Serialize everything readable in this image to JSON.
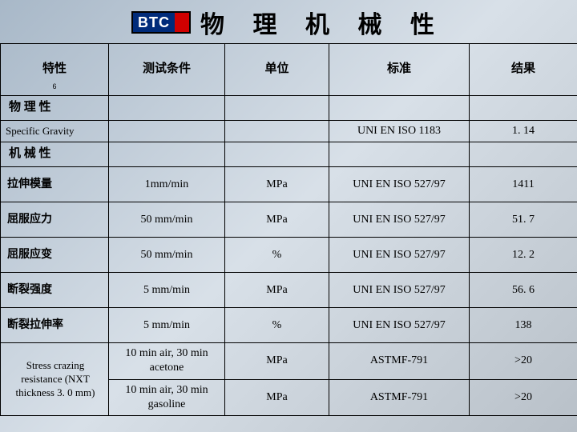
{
  "logo_text": "BTC",
  "title": "物 理 机 械 性",
  "headers": {
    "c1": "特性",
    "c1_sub": "6",
    "c2": "测试条件",
    "c3": "单位",
    "c4": "标准",
    "c5": "结果"
  },
  "section1": "物 理 性",
  "specific_gravity": {
    "name": "Specific Gravity",
    "std": "UNI  EN ISO 1183",
    "val": "1. 14"
  },
  "section2": "机 械 性",
  "rows": [
    {
      "name": "拉伸模量",
      "cond": "1mm/min",
      "unit": "MPa",
      "std": "UNI EN ISO 527/97",
      "val": "1411"
    },
    {
      "name": "屈服应力",
      "cond": "50 mm/min",
      "unit": "MPa",
      "std": "UNI EN ISO 527/97",
      "val": "51. 7"
    },
    {
      "name": "屈服应变",
      "cond": "50 mm/min",
      "unit": "%",
      "std": "UNI EN ISO 527/97",
      "val": "12. 2"
    },
    {
      "name": "断裂强度",
      "cond": "5 mm/min",
      "unit": "MPa",
      "std": "UNI EN ISO 527/97",
      "val": "56. 6"
    },
    {
      "name": "断裂拉伸率",
      "cond": "5 mm/min",
      "unit": "%",
      "std": "UNI EN ISO 527/97",
      "val": "138"
    }
  ],
  "stress_name": "Stress crazing resistance (NXT thickness 3. 0 mm)",
  "stress_r1": {
    "cond": "10 min air, 30 min acetone",
    "unit": "MPa",
    "std": "ASTMF-791",
    "val": ">20"
  },
  "stress_r2": {
    "cond": "10 min air, 30 min gasoline",
    "unit": "MPa",
    "std": "ASTMF-791",
    "val": ">20"
  }
}
